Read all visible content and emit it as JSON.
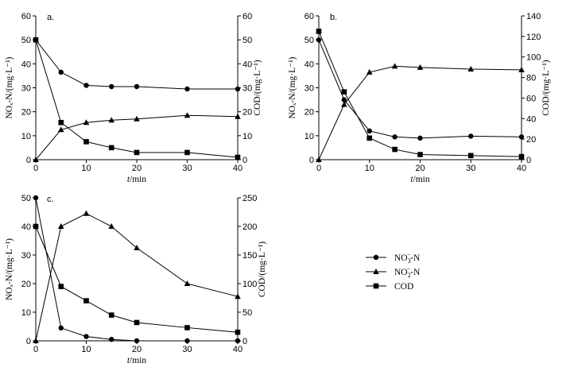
{
  "chart_data": [
    {
      "panel": "a.",
      "type": "line",
      "xlabel_var": "t",
      "xlabel_unit": "/min",
      "ylabel_left": "NOₓ-N/(mg·L⁻¹)",
      "ylabel_right": "COD/(mg·L⁻¹)",
      "xlim": [
        0,
        40
      ],
      "ylim_left": [
        0,
        60
      ],
      "ylim_right": [
        0,
        60
      ],
      "xticks": [
        0,
        10,
        20,
        30,
        40
      ],
      "yticks_left": [
        0,
        10,
        20,
        30,
        40,
        50,
        60
      ],
      "yticks_right": [
        0,
        10,
        20,
        30,
        40,
        50,
        60
      ],
      "x": [
        0,
        5,
        10,
        15,
        20,
        30,
        40
      ],
      "series": [
        {
          "name": "NO3-N",
          "marker": "circle",
          "axis": "left",
          "values": [
            50,
            36.5,
            31,
            30.5,
            30.5,
            29.5,
            29.5
          ]
        },
        {
          "name": "NO2-N",
          "marker": "triangle",
          "axis": "left",
          "values": [
            0,
            12.5,
            15.5,
            16.5,
            17,
            18.5,
            18
          ]
        },
        {
          "name": "COD",
          "marker": "square",
          "axis": "right",
          "values": [
            50,
            15.5,
            7.5,
            5,
            3,
            3,
            1
          ]
        }
      ]
    },
    {
      "panel": "b.",
      "type": "line",
      "xlabel_var": "t",
      "xlabel_unit": "/min",
      "ylabel_left": "NOₓ-N/(mg·L⁻¹)",
      "ylabel_right": "COD/(mg·L⁻¹)",
      "xlim": [
        0,
        40
      ],
      "ylim_left": [
        0,
        60
      ],
      "ylim_right": [
        0,
        140
      ],
      "xticks": [
        0,
        10,
        20,
        30,
        40
      ],
      "yticks_left": [
        0,
        10,
        20,
        30,
        40,
        50,
        60
      ],
      "yticks_right": [
        0,
        20,
        40,
        60,
        80,
        100,
        120,
        140
      ],
      "x": [
        0,
        5,
        10,
        15,
        20,
        30,
        40
      ],
      "series": [
        {
          "name": "NO3-N",
          "marker": "circle",
          "axis": "left",
          "values": [
            50,
            25,
            12,
            9.5,
            9,
            9.8,
            9.5
          ]
        },
        {
          "name": "NO2-N",
          "marker": "triangle",
          "axis": "left",
          "values": [
            0,
            23,
            36.5,
            39,
            38.5,
            37.8,
            37.5
          ]
        },
        {
          "name": "COD",
          "marker": "square",
          "axis": "right",
          "values": [
            125,
            66,
            21,
            10,
            5,
            4,
            3
          ]
        }
      ]
    },
    {
      "panel": "c.",
      "type": "line",
      "xlabel_var": "t",
      "xlabel_unit": "/min",
      "ylabel_left": "NOₓ-N/(mg·L⁻¹)",
      "ylabel_right": "COD/(mg·L⁻¹)",
      "xlim": [
        0,
        40
      ],
      "ylim_left": [
        0,
        50
      ],
      "ylim_right": [
        0,
        250
      ],
      "xticks": [
        0,
        10,
        20,
        30,
        40
      ],
      "yticks_left": [
        0,
        10,
        20,
        30,
        40,
        50
      ],
      "yticks_right": [
        0,
        50,
        100,
        150,
        200,
        250
      ],
      "x": [
        0,
        5,
        10,
        15,
        20,
        30,
        40
      ],
      "series": [
        {
          "name": "NO3-N",
          "marker": "circle",
          "axis": "left",
          "values": [
            50,
            4.5,
            1.5,
            0.5,
            0,
            0,
            0
          ]
        },
        {
          "name": "NO2-N",
          "marker": "triangle",
          "axis": "left",
          "values": [
            0,
            40,
            44.5,
            40,
            32.5,
            20,
            15.5
          ]
        },
        {
          "name": "COD",
          "marker": "square",
          "axis": "right",
          "values": [
            200,
            95,
            70,
            45,
            32,
            23,
            15
          ]
        }
      ]
    }
  ],
  "legend": [
    {
      "label_base": "NO",
      "label_sub": "3",
      "label_sup": "−",
      "label_tail": "-N",
      "marker": "circle"
    },
    {
      "label_base": "NO",
      "label_sub": "2",
      "label_sup": "−",
      "label_tail": "-N",
      "marker": "triangle"
    },
    {
      "label_base": "COD",
      "label_sub": "",
      "label_sup": "",
      "label_tail": "",
      "marker": "square"
    }
  ]
}
